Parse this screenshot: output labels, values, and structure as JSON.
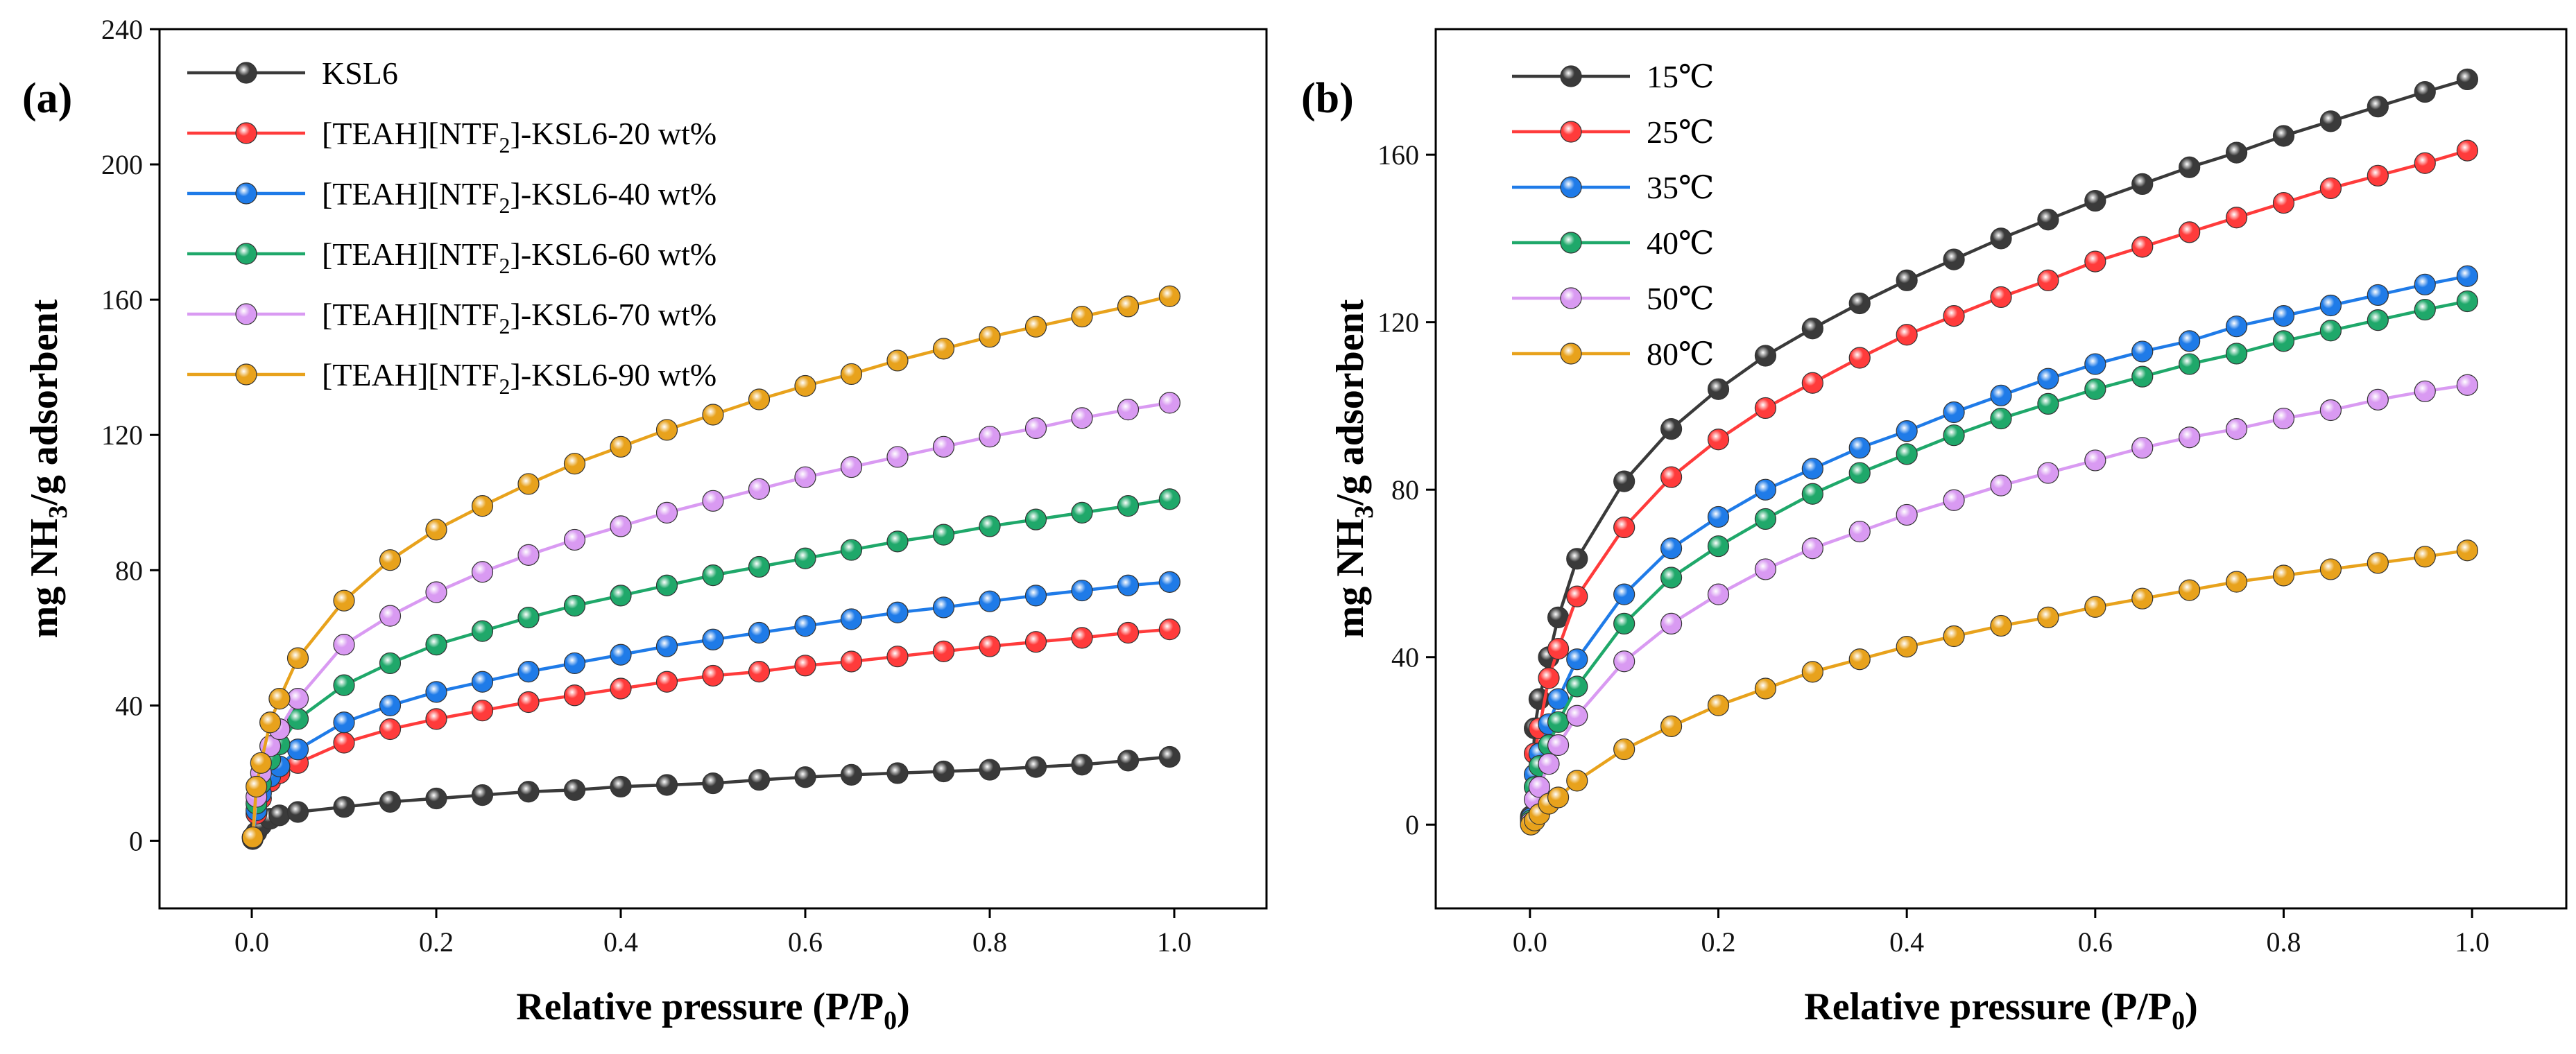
{
  "chart_data": [
    {
      "type": "line",
      "panel_label": "(a)",
      "xlabel": {
        "main": "Relative pressure (P/P",
        "sub": "0",
        "end": ")"
      },
      "ylabel": {
        "pre": "mg NH",
        "sub": "3",
        "post": "/g adsorbent"
      },
      "xlim": [
        -0.1,
        1.1
      ],
      "ylim": [
        -20,
        240
      ],
      "xticks": [
        0.0,
        0.2,
        0.4,
        0.6,
        0.8,
        1.0
      ],
      "xtick_labels": [
        "0.0",
        "0.2",
        "0.4",
        "0.6",
        "0.8",
        "1.0"
      ],
      "yticks": [
        0,
        40,
        80,
        120,
        160,
        200,
        240
      ],
      "ytick_labels": [
        "0",
        "40",
        "80",
        "120",
        "160",
        "200",
        "240"
      ],
      "legend_position": "top-left",
      "series": [
        {
          "name": "KSL6",
          "label_parts": [
            "KSL6"
          ],
          "color": "#3a3a3a",
          "x": [
            0.001,
            0.005,
            0.01,
            0.02,
            0.03,
            0.05,
            0.1,
            0.15,
            0.2,
            0.25,
            0.3,
            0.35,
            0.4,
            0.45,
            0.5,
            0.55,
            0.6,
            0.65,
            0.7,
            0.75,
            0.8,
            0.85,
            0.9,
            0.95,
            0.995
          ],
          "y": [
            0.5,
            2.5,
            4.5,
            6.5,
            7.5,
            8.5,
            10,
            11.5,
            12.5,
            13.5,
            14.5,
            15,
            16,
            16.5,
            17,
            18,
            18.8,
            19.5,
            20,
            20.5,
            21,
            21.8,
            22.5,
            23.7,
            24.8
          ]
        },
        {
          "name": "[TEAH][NTF2]-KSL6-20 wt%",
          "label_parts": [
            "[TEAH][NTF",
            "2",
            "]-KSL6-20 wt%"
          ],
          "color": "#ff3b3b",
          "x": [
            0.001,
            0.005,
            0.01,
            0.02,
            0.03,
            0.05,
            0.1,
            0.15,
            0.2,
            0.25,
            0.3,
            0.35,
            0.4,
            0.45,
            0.5,
            0.55,
            0.6,
            0.65,
            0.7,
            0.75,
            0.8,
            0.85,
            0.9,
            0.95,
            0.995
          ],
          "y": [
            1,
            8,
            12.5,
            17.5,
            20,
            23,
            29,
            33,
            36,
            38.5,
            41,
            43,
            45,
            47,
            48.8,
            50,
            51.8,
            53,
            54.5,
            56,
            57.5,
            58.8,
            60,
            61.5,
            62.5
          ]
        },
        {
          "name": "[TEAH][NTF2]-KSL6-40 wt%",
          "label_parts": [
            "[TEAH][NTF",
            "2",
            "]-KSL6-40 wt%"
          ],
          "color": "#1f7be8",
          "x": [
            0.001,
            0.005,
            0.01,
            0.02,
            0.03,
            0.05,
            0.1,
            0.15,
            0.2,
            0.25,
            0.3,
            0.35,
            0.4,
            0.45,
            0.5,
            0.55,
            0.6,
            0.65,
            0.7,
            0.75,
            0.8,
            0.85,
            0.9,
            0.95,
            0.995
          ],
          "y": [
            1,
            9,
            14,
            19,
            22,
            27,
            35,
            40,
            44,
            47,
            50,
            52.5,
            55,
            57.5,
            59.5,
            61.5,
            63.5,
            65.5,
            67.5,
            69,
            70.8,
            72.5,
            74,
            75.5,
            76.5
          ]
        },
        {
          "name": "[TEAH][NTF2]-KSL6-60 wt%",
          "label_parts": [
            "[TEAH][NTF",
            "2",
            "]-KSL6-60 wt%"
          ],
          "color": "#1fa86a",
          "x": [
            0.001,
            0.005,
            0.01,
            0.02,
            0.03,
            0.05,
            0.1,
            0.15,
            0.2,
            0.25,
            0.3,
            0.35,
            0.4,
            0.45,
            0.5,
            0.55,
            0.6,
            0.65,
            0.7,
            0.75,
            0.8,
            0.85,
            0.9,
            0.95,
            0.995
          ],
          "y": [
            1,
            11,
            17,
            24,
            28.5,
            36,
            46,
            52.5,
            58,
            62,
            66,
            69.5,
            72.5,
            75.5,
            78.5,
            81,
            83.5,
            86,
            88.5,
            90.5,
            93,
            95,
            97,
            99,
            101
          ]
        },
        {
          "name": "[TEAH][NTF2]-KSL6-70 wt%",
          "label_parts": [
            "[TEAH][NTF",
            "2",
            "]-KSL6-70 wt%"
          ],
          "color": "#d99af2",
          "x": [
            0.001,
            0.005,
            0.01,
            0.02,
            0.03,
            0.05,
            0.1,
            0.15,
            0.2,
            0.25,
            0.3,
            0.35,
            0.4,
            0.45,
            0.5,
            0.55,
            0.6,
            0.65,
            0.7,
            0.75,
            0.8,
            0.85,
            0.9,
            0.95,
            0.995
          ],
          "y": [
            1,
            13,
            20,
            28,
            33,
            42,
            58,
            66.5,
            73.5,
            79.5,
            84.5,
            89,
            93,
            97,
            100.5,
            104,
            107.5,
            110.5,
            113.5,
            116.5,
            119.5,
            122,
            125,
            127.5,
            129.5
          ]
        },
        {
          "name": "[TEAH][NTF2]-KSL6-90 wt%",
          "label_parts": [
            "[TEAH][NTF",
            "2",
            "]-KSL6-90 wt%"
          ],
          "color": "#e8a21c",
          "x": [
            0.001,
            0.005,
            0.01,
            0.02,
            0.03,
            0.05,
            0.1,
            0.15,
            0.2,
            0.25,
            0.3,
            0.35,
            0.4,
            0.45,
            0.5,
            0.55,
            0.6,
            0.65,
            0.7,
            0.75,
            0.8,
            0.85,
            0.9,
            0.95,
            0.995
          ],
          "y": [
            1,
            16,
            23,
            35,
            42,
            54,
            71,
            83,
            92,
            99,
            105.5,
            111.5,
            116.5,
            121.5,
            126,
            130.5,
            134.5,
            138,
            142,
            145.5,
            149,
            152,
            155,
            158,
            161
          ]
        }
      ]
    },
    {
      "type": "line",
      "panel_label": "(b)",
      "xlabel": {
        "main": "Relative pressure (P/P",
        "sub": "0",
        "end": ")"
      },
      "ylabel": {
        "pre": "mg NH",
        "sub": "3",
        "post": "/g adsorbent"
      },
      "xlim": [
        -0.1,
        1.1
      ],
      "ylim": [
        -20,
        190
      ],
      "xticks": [
        0.0,
        0.2,
        0.4,
        0.6,
        0.8,
        1.0
      ],
      "xtick_labels": [
        "0.0",
        "0.2",
        "0.4",
        "0.6",
        "0.8",
        "1.0"
      ],
      "yticks": [
        0,
        40,
        80,
        120,
        160
      ],
      "ytick_labels": [
        "0",
        "40",
        "80",
        "120",
        "160"
      ],
      "legend_position": "top-left",
      "series": [
        {
          "name": "15℃",
          "label_parts": [
            "15℃"
          ],
          "color": "#3a3a3a",
          "x": [
            0.001,
            0.005,
            0.01,
            0.02,
            0.03,
            0.05,
            0.1,
            0.15,
            0.2,
            0.25,
            0.3,
            0.35,
            0.4,
            0.45,
            0.5,
            0.55,
            0.6,
            0.65,
            0.7,
            0.75,
            0.8,
            0.85,
            0.9,
            0.95,
            0.995
          ],
          "y": [
            2,
            23,
            30,
            40,
            49.5,
            63.5,
            82,
            94.5,
            104,
            112,
            118.5,
            124.5,
            130,
            135,
            140,
            144.5,
            149,
            153,
            157,
            160.5,
            164.5,
            168,
            171.5,
            175,
            178
          ]
        },
        {
          "name": "25℃",
          "label_parts": [
            "25℃"
          ],
          "color": "#ff3b3b",
          "x": [
            0.001,
            0.005,
            0.01,
            0.02,
            0.03,
            0.05,
            0.1,
            0.15,
            0.2,
            0.25,
            0.3,
            0.35,
            0.4,
            0.45,
            0.5,
            0.55,
            0.6,
            0.65,
            0.7,
            0.75,
            0.8,
            0.85,
            0.9,
            0.95,
            0.995
          ],
          "y": [
            1.5,
            17,
            23,
            35,
            42,
            54.5,
            71,
            83,
            92,
            99.5,
            105.5,
            111.5,
            117,
            121.5,
            126,
            130,
            134.5,
            138,
            141.5,
            145,
            148.5,
            152,
            155,
            158,
            161
          ]
        },
        {
          "name": "35℃",
          "label_parts": [
            "35℃"
          ],
          "color": "#1f7be8",
          "x": [
            0.001,
            0.005,
            0.01,
            0.02,
            0.03,
            0.05,
            0.1,
            0.15,
            0.2,
            0.25,
            0.3,
            0.35,
            0.4,
            0.45,
            0.5,
            0.55,
            0.6,
            0.65,
            0.7,
            0.75,
            0.8,
            0.85,
            0.9,
            0.95,
            0.995
          ],
          "y": [
            1.5,
            12,
            17,
            24,
            30,
            39.5,
            55,
            66,
            73.5,
            80,
            85,
            90,
            94,
            98.5,
            102.5,
            106.5,
            110,
            113,
            115.5,
            119,
            121.5,
            124,
            126.5,
            129,
            131
          ]
        },
        {
          "name": "40℃",
          "label_parts": [
            "40℃"
          ],
          "color": "#1fa86a",
          "x": [
            0.001,
            0.005,
            0.01,
            0.02,
            0.03,
            0.05,
            0.1,
            0.15,
            0.2,
            0.25,
            0.3,
            0.35,
            0.4,
            0.45,
            0.5,
            0.55,
            0.6,
            0.65,
            0.7,
            0.75,
            0.8,
            0.85,
            0.9,
            0.95,
            0.995
          ],
          "y": [
            1,
            9,
            14,
            19,
            24.5,
            33,
            48,
            59,
            66.5,
            73,
            79,
            84,
            88.5,
            93,
            97,
            100.5,
            104,
            107,
            110,
            112.5,
            115.5,
            118,
            120.5,
            123,
            125
          ]
        },
        {
          "name": "50℃",
          "label_parts": [
            "50℃"
          ],
          "color": "#d99af2",
          "x": [
            0.001,
            0.005,
            0.01,
            0.02,
            0.03,
            0.05,
            0.1,
            0.15,
            0.2,
            0.25,
            0.3,
            0.35,
            0.4,
            0.45,
            0.5,
            0.55,
            0.6,
            0.65,
            0.7,
            0.75,
            0.8,
            0.85,
            0.9,
            0.95,
            0.995
          ],
          "y": [
            0.5,
            6,
            9,
            14.5,
            19,
            26,
            39,
            48,
            55,
            61,
            66,
            70,
            74,
            77.5,
            81,
            84,
            87,
            90,
            92.5,
            94.5,
            97,
            99,
            101.5,
            103.5,
            105
          ]
        },
        {
          "name": "80℃",
          "label_parts": [
            "80℃"
          ],
          "color": "#e8a21c",
          "x": [
            0.001,
            0.005,
            0.01,
            0.02,
            0.03,
            0.05,
            0.1,
            0.15,
            0.2,
            0.25,
            0.3,
            0.35,
            0.4,
            0.45,
            0.5,
            0.55,
            0.6,
            0.65,
            0.7,
            0.75,
            0.8,
            0.85,
            0.9,
            0.95,
            0.995
          ],
          "y": [
            0,
            1,
            2.5,
            5,
            6.5,
            10.5,
            18,
            23.5,
            28.5,
            32.5,
            36.5,
            39.5,
            42.5,
            45,
            47.5,
            49.5,
            52,
            54,
            56,
            58,
            59.5,
            61,
            62.5,
            64,
            65.5
          ]
        }
      ]
    }
  ]
}
